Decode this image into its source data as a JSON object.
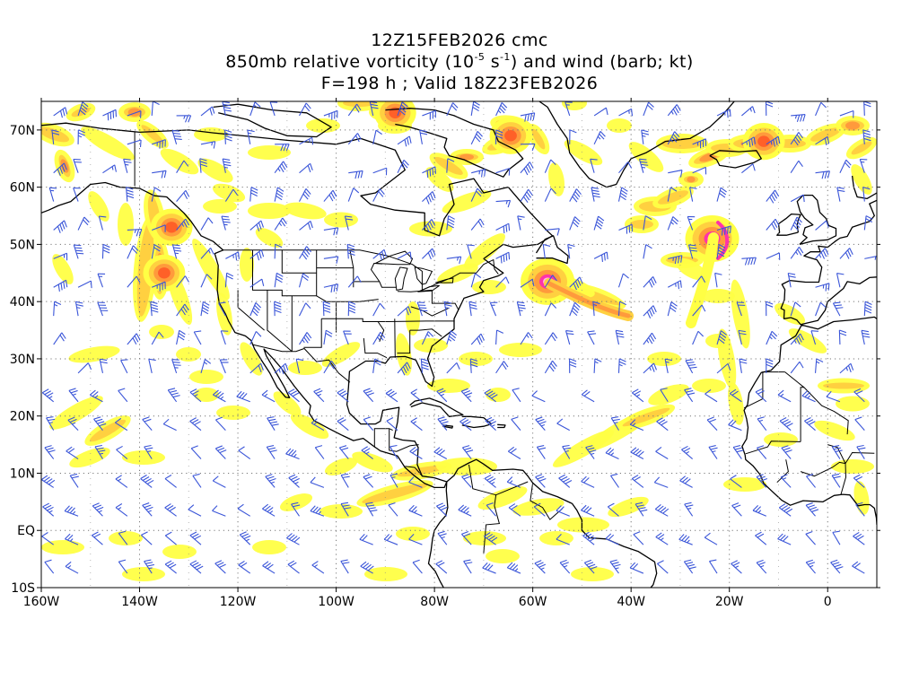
{
  "header": {
    "line1": "12Z15FEB2026 cmc",
    "line2_prefix": "850mb relative vorticity (10",
    "line2_exp1": "-5",
    "line2_mid": " s",
    "line2_exp2": "-1",
    "line2_suffix": ") and wind (barb; kt)",
    "line3": "F=198 h ; Valid 18Z23FEB2026"
  },
  "map": {
    "projection": "lat-lon",
    "lon_range": [
      -160,
      10
    ],
    "lat_range": [
      -10,
      75
    ],
    "lat_ticks": [
      {
        "value": 70,
        "label": "70N"
      },
      {
        "value": 60,
        "label": "60N"
      },
      {
        "value": 50,
        "label": "50N"
      },
      {
        "value": 40,
        "label": "40N"
      },
      {
        "value": 30,
        "label": "30N"
      },
      {
        "value": 20,
        "label": "20N"
      },
      {
        "value": 10,
        "label": "10N"
      },
      {
        "value": 0,
        "label": "EQ"
      },
      {
        "value": -10,
        "label": "10S"
      }
    ],
    "lon_ticks": [
      {
        "value": -160,
        "label": "160W"
      },
      {
        "value": -140,
        "label": "140W"
      },
      {
        "value": -120,
        "label": "120W"
      },
      {
        "value": -100,
        "label": "100W"
      },
      {
        "value": -80,
        "label": "80W"
      },
      {
        "value": -60,
        "label": "60W"
      },
      {
        "value": -40,
        "label": "40W"
      },
      {
        "value": -20,
        "label": "20W"
      },
      {
        "value": 0,
        "label": "0"
      }
    ],
    "grid": "dotted",
    "colors": {
      "shade_low": "#ffff44",
      "shade_mid": "#ffd040",
      "shade_high": "#ff9a3c",
      "shade_max": "#ff6028",
      "vort_peak": "#ff33aa",
      "vort_core": "#ffb4ee",
      "coastline": "#000000",
      "barb": "#3a55d8"
    },
    "vorticity_maxima": [
      {
        "lon": -57,
        "lat": 43.5,
        "level": "extreme"
      },
      {
        "lon": -23.5,
        "lat": 51,
        "level": "extreme"
      },
      {
        "lon": -135,
        "lat": 45,
        "level": "high"
      },
      {
        "lon": -133.5,
        "lat": 53,
        "level": "high"
      },
      {
        "lon": -64.5,
        "lat": 69,
        "level": "high"
      },
      {
        "lon": -88,
        "lat": 73,
        "level": "high"
      },
      {
        "lon": -13,
        "lat": 68,
        "level": "high"
      }
    ]
  }
}
